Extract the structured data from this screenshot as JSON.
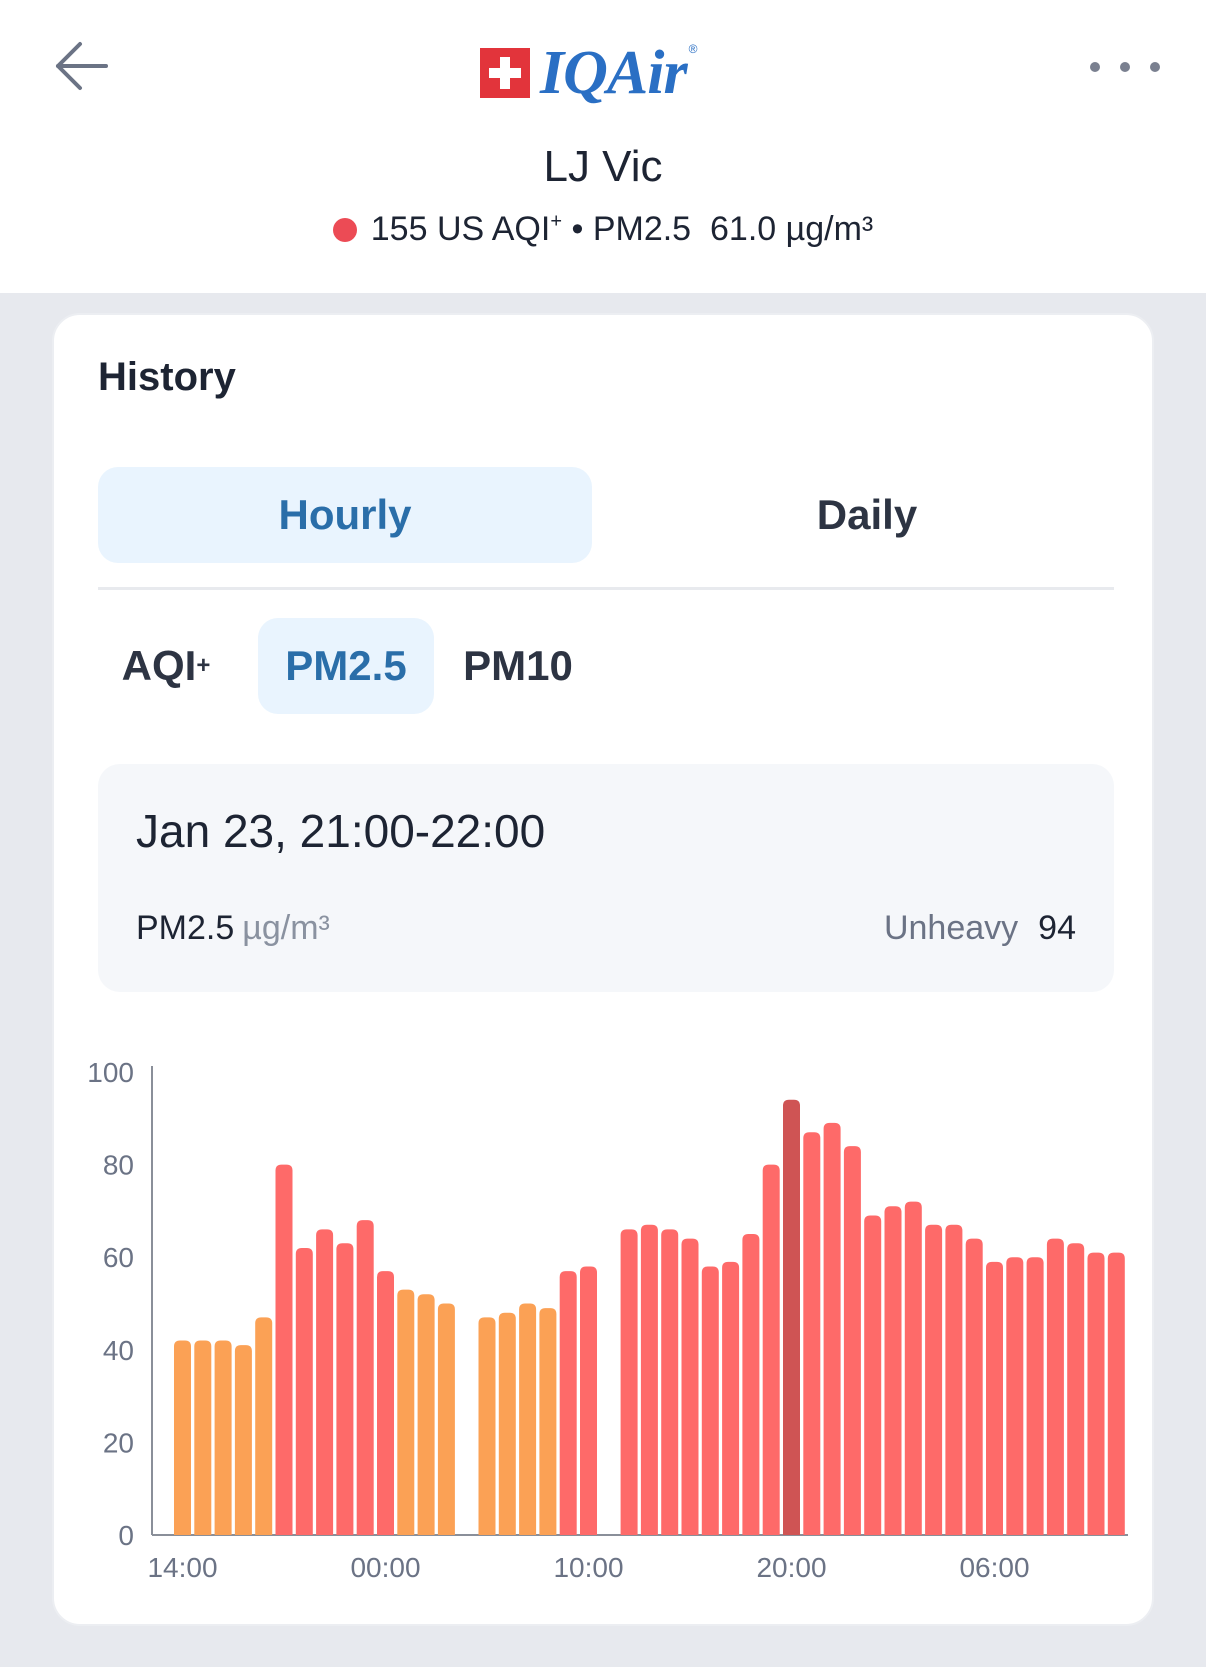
{
  "header": {
    "brand": "IQAir",
    "brand_mark": "®",
    "station_name": "LJ Vic",
    "aqi_value": "155",
    "aqi_label": "US AQI",
    "aqi_sup": "+",
    "separator": "•",
    "pollutant_label": "PM2.5",
    "pollutant_value": "61.0 µg/m³",
    "status_color": "#ec4b55"
  },
  "card": {
    "title": "History",
    "period_tabs": [
      {
        "label": "Hourly",
        "selected": true
      },
      {
        "label": "Daily",
        "selected": false
      }
    ],
    "metric_tabs": [
      {
        "label": "AQI",
        "sup": "+",
        "selected": false
      },
      {
        "label": "PM2.5",
        "selected": true
      },
      {
        "label": "PM10",
        "selected": false
      }
    ],
    "info": {
      "date_range": "Jan 23, 21:00-22:00",
      "metric": "PM2.5",
      "unit": "µg/m³",
      "level": "Unheavy",
      "value": "94"
    }
  },
  "chart_data": {
    "type": "bar",
    "ylim": [
      0,
      100
    ],
    "yticks": [
      "0",
      "20",
      "40",
      "60",
      "80",
      "100"
    ],
    "x_tick_labels": [
      {
        "label": "14:00",
        "index": 0
      },
      {
        "label": "00:00",
        "index": 10
      },
      {
        "label": "10:00",
        "index": 20
      },
      {
        "label": "20:00",
        "index": 30
      },
      {
        "label": "06:00",
        "index": 40
      }
    ],
    "values": [
      42,
      42,
      42,
      41,
      47,
      80,
      62,
      66,
      63,
      68,
      57,
      53,
      52,
      50,
      null,
      47,
      48,
      50,
      49,
      57,
      58,
      null,
      66,
      67,
      66,
      64,
      58,
      59,
      65,
      80,
      94,
      87,
      89,
      84,
      69,
      71,
      72,
      67,
      67,
      64,
      59,
      60,
      60,
      64,
      63,
      61,
      61
    ],
    "selected_index": 30,
    "colors": {
      "moderate": "#fba155",
      "unhealthy": "#fe6a69",
      "selected": "#cf5454",
      "axis": "#8a8f99",
      "label": "#6b7385"
    },
    "color_threshold": 55.5
  }
}
